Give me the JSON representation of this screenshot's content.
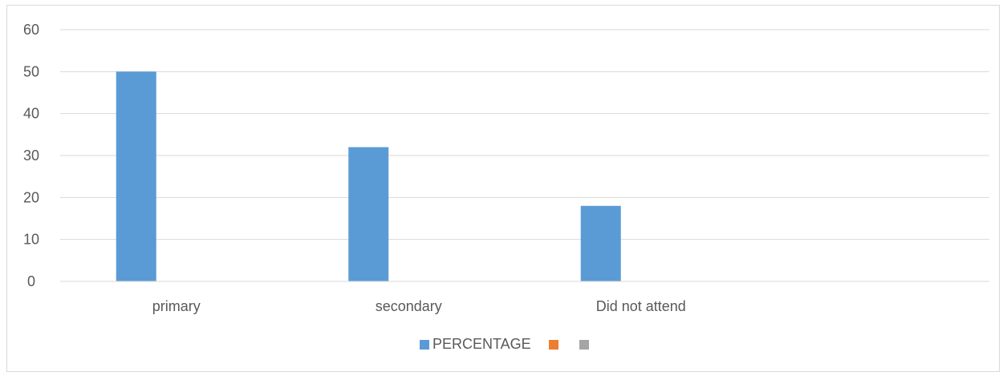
{
  "chart_data": {
    "type": "bar",
    "title": "",
    "xlabel": "",
    "ylabel": "",
    "categories": [
      "primary",
      "secondary",
      "Did not attend",
      ""
    ],
    "series": [
      {
        "name": "PERCENTAGE",
        "color": "#5b9bd5",
        "values": [
          50,
          32,
          18,
          null
        ]
      },
      {
        "name": "",
        "color": "#ed7d31",
        "values": [
          null,
          null,
          null,
          null
        ]
      },
      {
        "name": "",
        "color": "#a5a5a5",
        "values": [
          null,
          null,
          null,
          null
        ]
      }
    ],
    "ylim": [
      0,
      60
    ],
    "yticks": [
      0,
      10,
      20,
      30,
      40,
      50,
      60
    ],
    "grid": true,
    "gridColor": "#d9d9d9",
    "legend_position": "bottom"
  }
}
